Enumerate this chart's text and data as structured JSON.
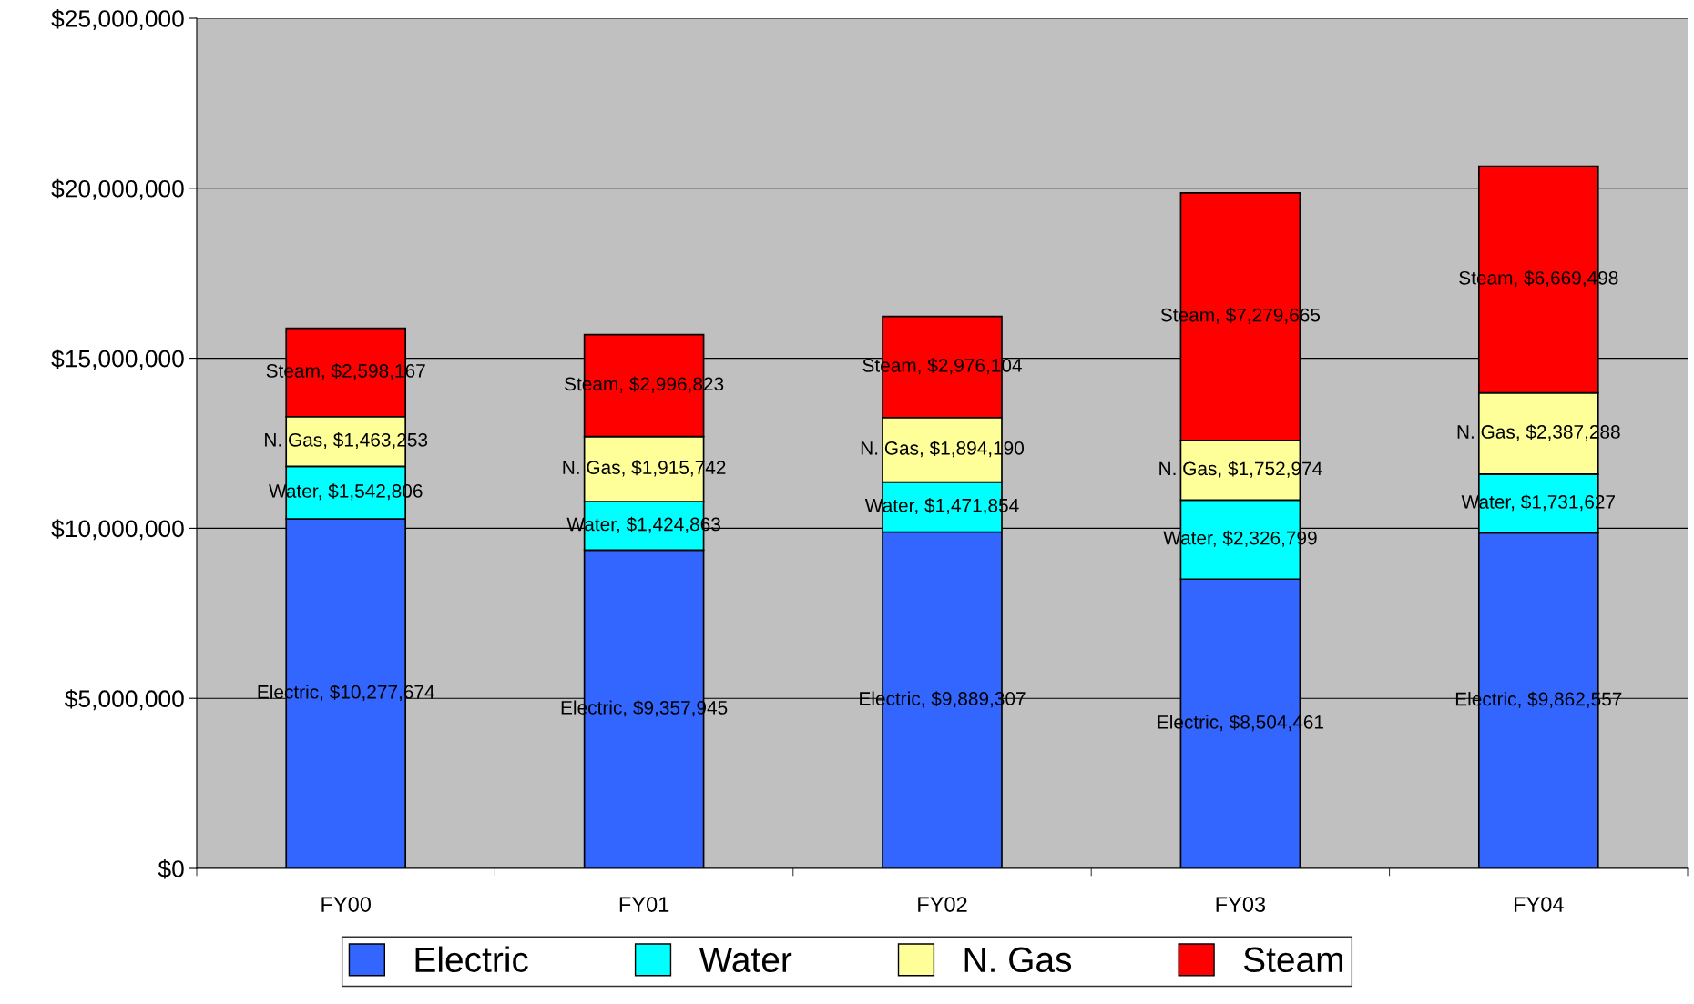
{
  "chart_data": {
    "type": "bar",
    "stacked": true,
    "categories": [
      "FY00",
      "FY01",
      "FY02",
      "FY03",
      "FY04"
    ],
    "series": [
      {
        "name": "Electric",
        "color": "#3366ff",
        "values": [
          10277674,
          9357945,
          9889307,
          8504461,
          9862557
        ],
        "value_labels": [
          "Electric, $10,277,674",
          "Electric, $9,357,945",
          "Electric, $9,889,307",
          "Electric, $8,504,461",
          "Electric, $9,862,557"
        ]
      },
      {
        "name": "Water",
        "color": "#00ffff",
        "values": [
          1542806,
          1424863,
          1471854,
          2326799,
          1731627
        ],
        "value_labels": [
          "Water, $1,542,806",
          "Water, $1,424,863",
          "Water, $1,471,854",
          "Water, $2,326,799",
          "Water, $1,731,627"
        ]
      },
      {
        "name": "N. Gas",
        "color": "#ffff99",
        "values": [
          1463253,
          1915742,
          1894190,
          1752974,
          2387288
        ],
        "value_labels": [
          "N. Gas, $1,463,253",
          "N. Gas, $1,915,742",
          "N. Gas, $1,894,190",
          "N. Gas, $1,752,974",
          "N. Gas, $2,387,288"
        ]
      },
      {
        "name": "Steam",
        "color": "#ff0000",
        "values": [
          2598167,
          2996823,
          2976104,
          7279665,
          6669498
        ],
        "value_labels": [
          "Steam, $2,598,167",
          "Steam, $2,996,823",
          "Steam, $2,976,104",
          "Steam, $7,279,665",
          "Steam, $6,669,498"
        ]
      }
    ],
    "ylim": [
      0,
      25000000
    ],
    "yticks": [
      {
        "value": 0,
        "label": "$0"
      },
      {
        "value": 5000000,
        "label": "$5,000,000"
      },
      {
        "value": 10000000,
        "label": "$10,000,000"
      },
      {
        "value": 15000000,
        "label": "$15,000,000"
      },
      {
        "value": 20000000,
        "label": "$20,000,000"
      },
      {
        "value": 25000000,
        "label": "$25,000,000"
      }
    ],
    "grid": "y",
    "legend": "bottom"
  }
}
